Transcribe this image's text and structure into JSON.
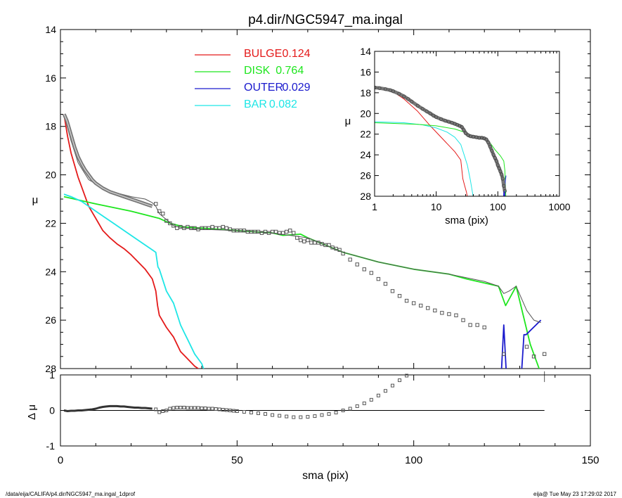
{
  "footer": {
    "path": "/data/eija/CALIFA/p4.dir/NGC5947_ma.ingal_1dprof",
    "stamp": "eija@  Tue May 23 17:29:02 2017"
  },
  "chart_data": [
    {
      "type": "line",
      "panel": "main",
      "title": "p4.dir/NGC5947_ma.ingal",
      "xlabel": "",
      "ylabel": "μ",
      "xlim": [
        0,
        150
      ],
      "ylim": [
        28,
        14
      ],
      "xticks": [
        0,
        50,
        100,
        150
      ],
      "yticks": [
        14,
        16,
        18,
        20,
        22,
        24,
        26,
        28
      ],
      "legend": [
        {
          "label": "BULGE",
          "value": "0.124",
          "color": "#e41a1a"
        },
        {
          "label": "DISK",
          "value": "0.764",
          "color": "#1ee61e"
        },
        {
          "label": "OUTER",
          "value": "0.029",
          "color": "#1a1acd"
        },
        {
          "label": "BAR",
          "value": "0.082",
          "color": "#1ee6e6"
        }
      ],
      "series": [
        {
          "name": "BULGE",
          "color": "#e41a1a",
          "x": [
            1,
            2,
            3,
            4,
            5,
            6,
            8,
            10,
            12,
            14,
            16,
            18,
            20,
            22,
            24,
            26,
            27,
            27.5,
            28,
            30,
            32,
            34,
            36,
            38,
            40
          ],
          "y": [
            17.5,
            18.4,
            19.1,
            19.6,
            20.1,
            20.5,
            21.3,
            21.8,
            22.3,
            22.6,
            22.85,
            23.05,
            23.3,
            23.6,
            23.9,
            24.3,
            24.8,
            25.4,
            25.8,
            26.3,
            26.7,
            27.3,
            27.6,
            27.9,
            28.1
          ]
        },
        {
          "name": "DISK",
          "color": "#1ee61e",
          "x": [
            1,
            10,
            20,
            28,
            31,
            35,
            40,
            50,
            60,
            63,
            68,
            70,
            80,
            90,
            100,
            110,
            115,
            124,
            126,
            129,
            133,
            136
          ],
          "y": [
            20.9,
            21.2,
            21.5,
            21.8,
            22.0,
            22.15,
            22.2,
            22.3,
            22.4,
            22.5,
            22.45,
            22.6,
            23.2,
            23.6,
            23.9,
            24.1,
            24.3,
            24.6,
            25.4,
            24.6,
            27.0,
            28.2
          ]
        },
        {
          "name": "OUTER",
          "color": "#1a1acd",
          "x": [
            124.8,
            125.5,
            126.2,
            130.5,
            131.2,
            131.8,
            136
          ],
          "y": [
            28.2,
            26.2,
            28.2,
            28.2,
            26.6,
            26.6,
            26.0
          ]
        },
        {
          "name": "BAR",
          "color": "#1ee6e6",
          "x": [
            1,
            3,
            6,
            9,
            12,
            15,
            18,
            21,
            24,
            26,
            27,
            27.6,
            28,
            30,
            32,
            34,
            35,
            36,
            38,
            40,
            41
          ],
          "y": [
            20.8,
            20.9,
            21.1,
            21.4,
            21.7,
            22.0,
            22.3,
            22.6,
            22.9,
            23.1,
            23.2,
            23.8,
            23.9,
            24.8,
            25.3,
            26.2,
            26.5,
            26.8,
            27.4,
            27.8,
            28.2
          ]
        },
        {
          "name": "model",
          "color": "#555555",
          "x": [
            1,
            3,
            5,
            8,
            12,
            16,
            20,
            24,
            26,
            27,
            28,
            30,
            32,
            35,
            40,
            50,
            60,
            65,
            70,
            80,
            90,
            100,
            110,
            120,
            124,
            125.5,
            127,
            129,
            132,
            134,
            136
          ],
          "y": [
            17.5,
            18.6,
            19.5,
            20.2,
            20.55,
            20.75,
            20.9,
            21.0,
            21.15,
            21.3,
            21.6,
            21.85,
            22.1,
            22.2,
            22.25,
            22.3,
            22.4,
            22.5,
            22.6,
            23.2,
            23.6,
            23.9,
            24.1,
            24.4,
            24.6,
            24.9,
            24.8,
            24.6,
            25.6,
            26.0,
            26.1
          ]
        },
        {
          "name": "data",
          "color": "#555555",
          "marker": "square",
          "x": [
            27,
            28,
            29,
            30,
            31,
            32,
            33,
            34,
            35,
            36,
            37,
            38,
            39,
            40,
            41,
            42,
            43,
            44,
            45,
            46,
            47,
            48,
            49,
            50,
            51,
            52,
            53,
            54,
            55,
            56,
            57,
            58,
            59,
            60,
            61,
            62,
            63,
            64,
            65,
            66,
            67,
            68,
            69,
            70,
            71,
            72,
            73,
            74,
            75,
            76,
            77,
            78,
            79,
            80,
            82,
            84,
            86,
            88,
            90,
            92,
            94,
            96,
            98,
            100,
            102,
            104,
            106,
            108,
            110,
            112,
            114,
            116,
            118,
            120,
            125.5,
            132,
            134,
            137
          ],
          "y": [
            21.2,
            21.5,
            21.6,
            21.9,
            22.0,
            22.1,
            22.2,
            22.15,
            22.2,
            22.15,
            22.2,
            22.2,
            22.25,
            22.2,
            22.2,
            22.2,
            22.15,
            22.2,
            22.2,
            22.15,
            22.2,
            22.25,
            22.3,
            22.3,
            22.3,
            22.3,
            22.35,
            22.35,
            22.35,
            22.35,
            22.4,
            22.35,
            22.4,
            22.35,
            22.35,
            22.4,
            22.4,
            22.35,
            22.3,
            22.4,
            22.6,
            22.7,
            22.75,
            22.7,
            22.8,
            22.8,
            22.8,
            22.85,
            22.9,
            22.9,
            23.0,
            23.05,
            23.1,
            23.25,
            23.5,
            23.7,
            23.9,
            24.05,
            24.3,
            24.5,
            24.8,
            25.0,
            25.2,
            25.3,
            25.4,
            25.5,
            25.6,
            25.7,
            25.75,
            25.8,
            26.0,
            26.2,
            26.2,
            26.3,
            27.4,
            27.1,
            27.5,
            27.4
          ]
        }
      ]
    },
    {
      "type": "line",
      "panel": "inset",
      "xlabel": "sma (pix)",
      "ylabel": "μ",
      "xscale": "log",
      "xlim": [
        1,
        1000
      ],
      "ylim": [
        28,
        14
      ],
      "xticks": [
        "1",
        "10",
        "100",
        "1000"
      ],
      "yticks": [
        14,
        16,
        18,
        20,
        22,
        24,
        26,
        28
      ],
      "series": [
        {
          "name": "BULGE",
          "color": "#e41a1a",
          "x": [
            1,
            2,
            3,
            5,
            8,
            12,
            20,
            25,
            27,
            29,
            31,
            32
          ],
          "y": [
            17.5,
            17.9,
            18.6,
            19.8,
            21.2,
            22.3,
            23.7,
            24.5,
            26.3,
            27.0,
            27.6,
            28.1
          ]
        },
        {
          "name": "BAR",
          "color": "#1ee6e6",
          "x": [
            1,
            3,
            6,
            10,
            15,
            20,
            25,
            28,
            32,
            36,
            40
          ],
          "y": [
            20.8,
            20.9,
            21.1,
            21.4,
            21.8,
            22.3,
            23.0,
            23.9,
            25.0,
            26.5,
            28.1
          ]
        },
        {
          "name": "DISK",
          "color": "#1ee61e",
          "x": [
            1,
            5,
            10,
            20,
            30,
            40,
            50,
            70,
            90,
            110,
            125,
            130,
            135
          ],
          "y": [
            20.9,
            21.05,
            21.2,
            21.5,
            21.85,
            22.2,
            22.3,
            22.6,
            23.5,
            24.1,
            24.6,
            25.5,
            28.2
          ]
        },
        {
          "name": "OUTER",
          "color": "#1a1acd",
          "x": [
            124,
            125.5,
            127,
            130,
            132,
            136
          ],
          "y": [
            28.2,
            26.2,
            28.2,
            28.2,
            26.6,
            26.0
          ]
        },
        {
          "name": "data",
          "color": "#555555",
          "marker": "circle",
          "x": [
            1,
            1.2,
            1.5,
            1.8,
            2,
            2.5,
            3,
            3.5,
            4,
            5,
            6,
            7,
            8,
            9,
            10,
            12,
            14,
            16,
            18,
            20,
            22,
            24,
            26,
            28,
            30,
            33,
            36,
            40,
            45,
            50,
            55,
            60,
            65,
            70,
            75,
            80,
            85,
            90,
            95,
            100,
            105,
            110,
            115,
            120,
            125,
            130
          ],
          "y": [
            17.5,
            17.55,
            17.65,
            17.75,
            17.85,
            18.1,
            18.35,
            18.6,
            18.85,
            19.25,
            19.55,
            19.8,
            20.0,
            20.2,
            20.35,
            20.55,
            20.7,
            20.8,
            20.9,
            21.0,
            21.1,
            21.2,
            21.3,
            21.6,
            21.9,
            22.1,
            22.2,
            22.25,
            22.3,
            22.35,
            22.35,
            22.4,
            22.5,
            22.8,
            23.2,
            23.6,
            24.0,
            24.3,
            24.6,
            25.0,
            25.3,
            25.6,
            25.9,
            26.3,
            27.0,
            27.5
          ]
        }
      ]
    },
    {
      "type": "scatter",
      "panel": "residual",
      "xlabel": "sma (pix)",
      "ylabel": "Δ μ",
      "xlim": [
        0,
        150
      ],
      "ylim": [
        -1,
        1
      ],
      "xticks": [
        0,
        50,
        100,
        150
      ],
      "yticks": [
        1,
        0,
        -1
      ],
      "series": [
        {
          "name": "residual",
          "color": "#555555",
          "x": [
            1,
            2,
            3,
            4,
            5,
            6,
            7,
            8,
            9,
            10,
            11,
            12,
            13,
            14,
            15,
            16,
            17,
            18,
            19,
            20,
            21,
            22,
            23,
            24,
            25,
            26,
            27,
            28,
            29,
            30,
            31,
            32,
            33,
            34,
            35,
            36,
            37,
            38,
            39,
            40,
            41,
            42,
            43,
            44,
            45,
            46,
            47,
            48,
            49,
            50,
            52,
            54,
            56,
            58,
            60,
            62,
            64,
            66,
            68,
            70,
            72,
            74,
            76,
            78,
            80,
            82,
            84,
            86,
            88,
            90,
            92,
            94,
            96,
            98
          ],
          "y": [
            0.0,
            -0.02,
            -0.01,
            -0.01,
            0.0,
            0.0,
            0.01,
            0.02,
            0.03,
            0.05,
            0.08,
            0.1,
            0.11,
            0.12,
            0.12,
            0.12,
            0.11,
            0.11,
            0.1,
            0.09,
            0.08,
            0.08,
            0.07,
            0.07,
            0.06,
            0.05,
            0.03,
            -0.05,
            -0.02,
            0.0,
            0.05,
            0.07,
            0.08,
            0.08,
            0.08,
            0.07,
            0.07,
            0.07,
            0.07,
            0.06,
            0.06,
            0.05,
            0.05,
            0.04,
            0.03,
            0.02,
            0.01,
            0.0,
            -0.01,
            -0.02,
            -0.04,
            -0.06,
            -0.08,
            -0.1,
            -0.13,
            -0.15,
            -0.17,
            -0.19,
            -0.19,
            -0.18,
            -0.16,
            -0.13,
            -0.1,
            -0.06,
            0.0,
            0.05,
            0.12,
            0.2,
            0.3,
            0.42,
            0.55,
            0.7,
            0.85,
            0.98
          ]
        }
      ]
    }
  ]
}
